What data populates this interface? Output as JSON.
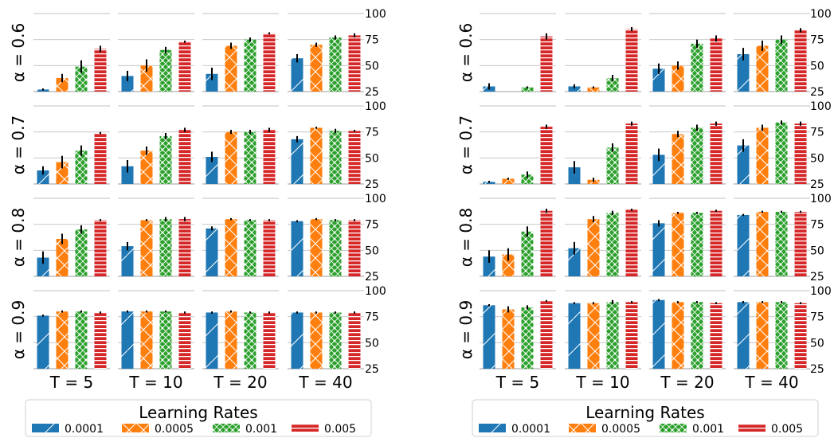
{
  "colors": {
    "lr_0.0001": "#1f77b4",
    "lr_0.0005": "#ff7f0e",
    "lr_0.001": "#2ca02c",
    "lr_0.005": "#d62728",
    "grid": "#b0b0b0"
  },
  "chart_data": [
    {
      "type": "bar",
      "panel": "left",
      "title": "",
      "ylim": [
        25,
        100
      ],
      "yticks": [
        25,
        50,
        75,
        100
      ],
      "grid": "horizontal",
      "row_labels": [
        "α = 0.6",
        "α = 0.7",
        "α = 0.8",
        "α = 0.9"
      ],
      "col_labels": [
        "T = 5",
        "T = 10",
        "T = 20",
        "T = 40"
      ],
      "legend": {
        "title": "Learning Rates",
        "entries": [
          "0.0001",
          "0.0005",
          "0.001",
          "0.005"
        ],
        "placement": "bottom-center"
      },
      "values": [
        [
          [
            27,
            38,
            49,
            66
          ],
          [
            40,
            50,
            65,
            73
          ],
          [
            42,
            69,
            75,
            81
          ],
          [
            57,
            70,
            77,
            79
          ]
        ],
        [
          [
            38,
            46,
            57,
            74
          ],
          [
            42,
            57,
            71,
            77
          ],
          [
            51,
            75,
            75,
            77
          ],
          [
            68,
            79,
            76,
            76
          ]
        ],
        [
          [
            43,
            61,
            70,
            79
          ],
          [
            54,
            79,
            80,
            80
          ],
          [
            71,
            80,
            79,
            79
          ],
          [
            78,
            80,
            79,
            79
          ]
        ],
        [
          [
            76,
            80,
            80,
            79
          ],
          [
            80,
            80,
            80,
            79
          ],
          [
            79,
            80,
            79,
            79
          ],
          [
            79,
            79,
            79,
            79
          ]
        ]
      ],
      "errors": [
        [
          [
            1,
            4,
            6,
            3
          ],
          [
            5,
            6,
            3,
            1
          ],
          [
            6,
            3,
            2,
            1
          ],
          [
            4,
            2,
            2,
            2
          ]
        ],
        [
          [
            4,
            6,
            5,
            1
          ],
          [
            6,
            4,
            3,
            2
          ],
          [
            5,
            2,
            2,
            2
          ],
          [
            3,
            1,
            2,
            1
          ]
        ],
        [
          [
            6,
            5,
            4,
            1
          ],
          [
            4,
            1,
            2,
            2
          ],
          [
            2,
            1,
            1,
            1
          ],
          [
            1,
            1,
            1,
            1
          ]
        ],
        [
          [
            1,
            1,
            1,
            1
          ],
          [
            1,
            1,
            1,
            1
          ],
          [
            1,
            1,
            1,
            1
          ],
          [
            1,
            1,
            1,
            1
          ]
        ]
      ]
    },
    {
      "type": "bar",
      "panel": "right",
      "title": "",
      "ylim": [
        25,
        100
      ],
      "yticks": [
        25,
        50,
        75,
        100
      ],
      "grid": "horizontal",
      "row_labels": [
        "α = 0.6",
        "α = 0.7",
        "α = 0.8",
        "α = 0.9"
      ],
      "col_labels": [
        "T = 5",
        "T = 10",
        "T = 20",
        "T = 40"
      ],
      "legend": {
        "title": "Learning Rates",
        "entries": [
          "0.0001",
          "0.0005",
          "0.001",
          "0.005"
        ],
        "placement": "bottom-center"
      },
      "values": [
        [
          [
            30,
            25,
            29,
            78
          ],
          [
            30,
            29,
            38,
            85
          ],
          [
            47,
            50,
            71,
            76
          ],
          [
            61,
            69,
            75,
            84
          ]
        ],
        [
          [
            27,
            30,
            34,
            80
          ],
          [
            41,
            29,
            60,
            83
          ],
          [
            53,
            73,
            79,
            83
          ],
          [
            62,
            79,
            84,
            83
          ]
        ],
        [
          [
            44,
            46,
            68,
            88
          ],
          [
            52,
            80,
            86,
            89
          ],
          [
            76,
            86,
            86,
            88
          ],
          [
            84,
            87,
            87,
            87
          ]
        ],
        [
          [
            86,
            82,
            84,
            90
          ],
          [
            88,
            88,
            89,
            89
          ],
          [
            91,
            89,
            89,
            88
          ],
          [
            89,
            89,
            89,
            88
          ]
        ]
      ],
      "errors": [
        [
          [
            3,
            0,
            1,
            3
          ],
          [
            2,
            1,
            3,
            2
          ],
          [
            5,
            4,
            4,
            3
          ],
          [
            6,
            5,
            4,
            2
          ]
        ],
        [
          [
            1,
            1,
            3,
            2
          ],
          [
            6,
            2,
            4,
            2
          ],
          [
            6,
            3,
            3,
            2
          ],
          [
            6,
            3,
            2,
            2
          ]
        ],
        [
          [
            6,
            6,
            5,
            2
          ],
          [
            6,
            3,
            2,
            1
          ],
          [
            3,
            1,
            1,
            1
          ],
          [
            1,
            1,
            1,
            1
          ]
        ],
        [
          [
            1,
            3,
            2,
            1
          ],
          [
            1,
            1,
            2,
            1
          ],
          [
            1,
            1,
            1,
            1
          ],
          [
            1,
            1,
            1,
            1
          ]
        ]
      ]
    }
  ]
}
